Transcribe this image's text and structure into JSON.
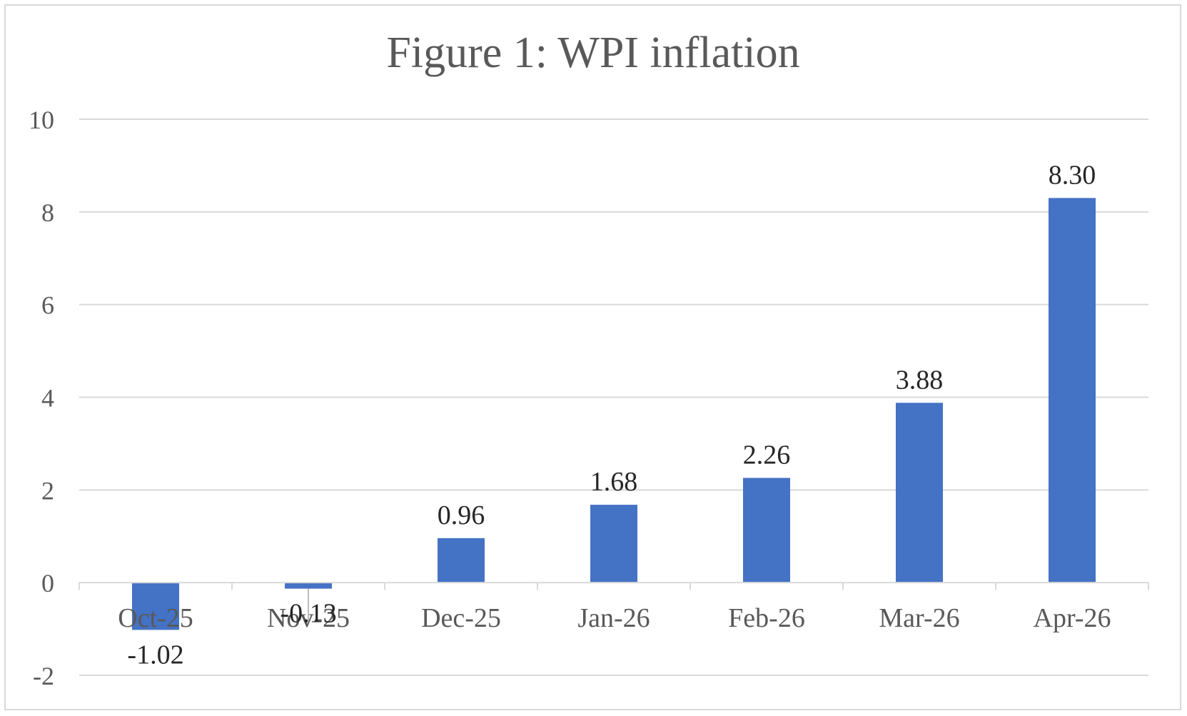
{
  "colors": {
    "bar": "#4472C4",
    "grid": "#D9D9D9",
    "axis_text": "#595959",
    "data_label": "#262626",
    "border": "#D9D9D9"
  },
  "chart_data": {
    "type": "bar",
    "title": "Figure 1: WPI inflation",
    "xlabel": "",
    "ylabel": "",
    "categories": [
      "Oct-25",
      "Nov-25",
      "Dec-25",
      "Jan-26",
      "Feb-26",
      "Mar-26",
      "Apr-26"
    ],
    "series": [
      {
        "values": [
          -1.02,
          -0.13,
          0.96,
          1.68,
          2.26,
          3.88,
          8.3
        ],
        "data_labels": [
          "-1.02",
          "-0.13",
          "0.96",
          "1.68",
          "2.26",
          "3.88",
          "8.30"
        ]
      }
    ],
    "ylim": [
      -2,
      10
    ],
    "yticks": [
      -2,
      0,
      2,
      4,
      6,
      8,
      10
    ],
    "grid": true,
    "legend": "none"
  }
}
